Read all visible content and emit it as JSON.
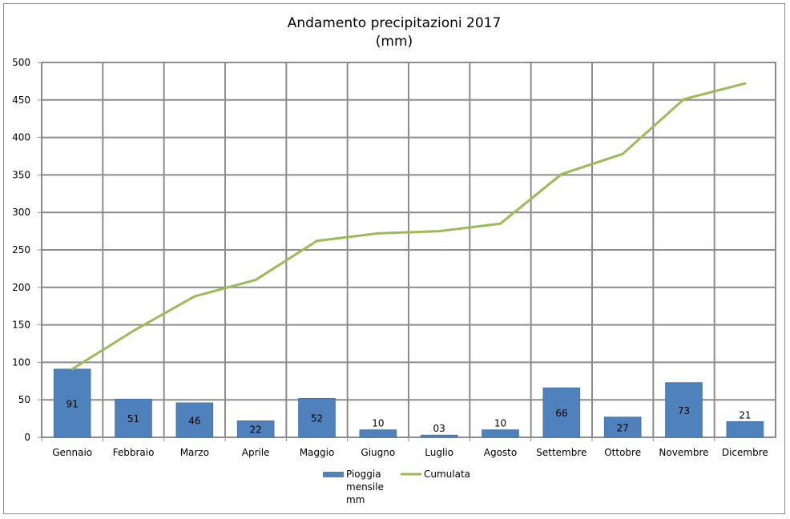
{
  "chart_data": {
    "type": "bar",
    "title": "Andamento precipitazioni 2017",
    "subtitle": "(mm)",
    "categories": [
      "Gennaio",
      "Febbraio",
      "Marzo",
      "Aprile",
      "Maggio",
      "Giugno",
      "Luglio",
      "Agosto",
      "Settembre",
      "Ottobre",
      "Novembre",
      "Dicembre"
    ],
    "series": [
      {
        "name": "Pioggia mensile mm",
        "type": "bar",
        "color": "#4f81bd",
        "values": [
          91,
          51,
          46,
          22,
          52,
          10,
          3,
          10,
          66,
          27,
          73,
          21
        ],
        "labels": [
          "91",
          "51",
          "46",
          "22",
          "52",
          "10",
          "03",
          "10",
          "66",
          "27",
          "73",
          "21"
        ]
      },
      {
        "name": "Cumulata",
        "type": "line",
        "color": "#9bbb59",
        "values": [
          91,
          142,
          188,
          210,
          262,
          272,
          275,
          285,
          351,
          378,
          451,
          472
        ]
      }
    ],
    "ylim": [
      0,
      500
    ],
    "yticks": [
      0,
      50,
      100,
      150,
      200,
      250,
      300,
      350,
      400,
      450,
      500
    ],
    "grid": true,
    "legend_position": "bottom",
    "legend_lines": [
      [
        "Pioggia",
        "mensile",
        "mm"
      ],
      [
        "Cumulata"
      ]
    ]
  }
}
